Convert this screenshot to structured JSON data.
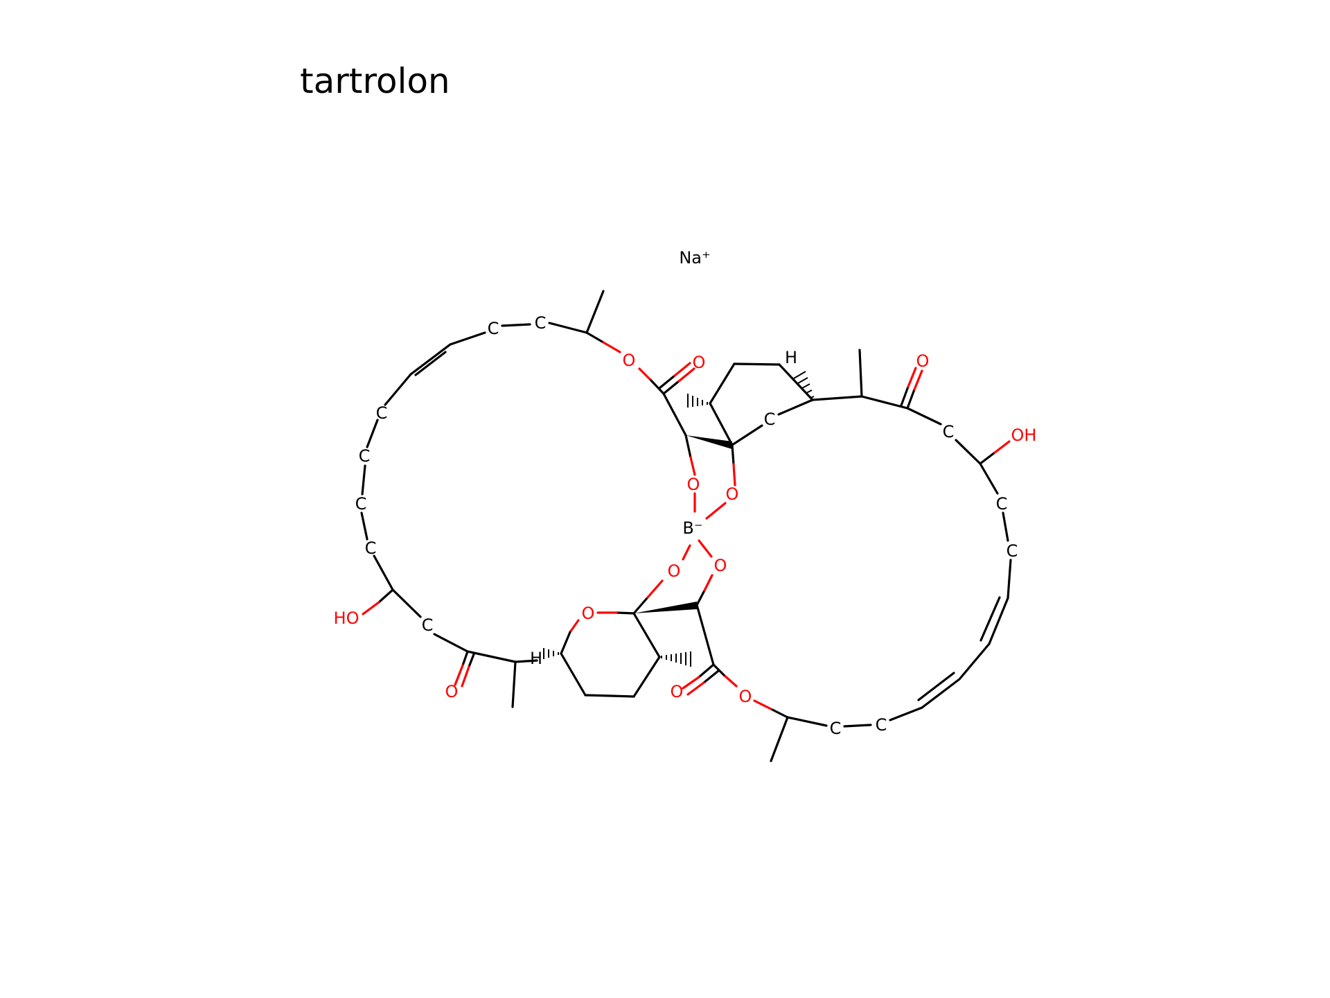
{
  "title": "tartrolon",
  "counterion": "Na⁺",
  "colors": {
    "carbon": "#000000",
    "oxygen": "#ff0000",
    "background": "#ffffff"
  },
  "atoms": {
    "carbon_label": "C",
    "oxygen_label": "O",
    "hydroxyl_label": "OH",
    "hydroxyl_left_label": "HO",
    "hydrogen_label": "H",
    "boron_label": "B⁻"
  }
}
